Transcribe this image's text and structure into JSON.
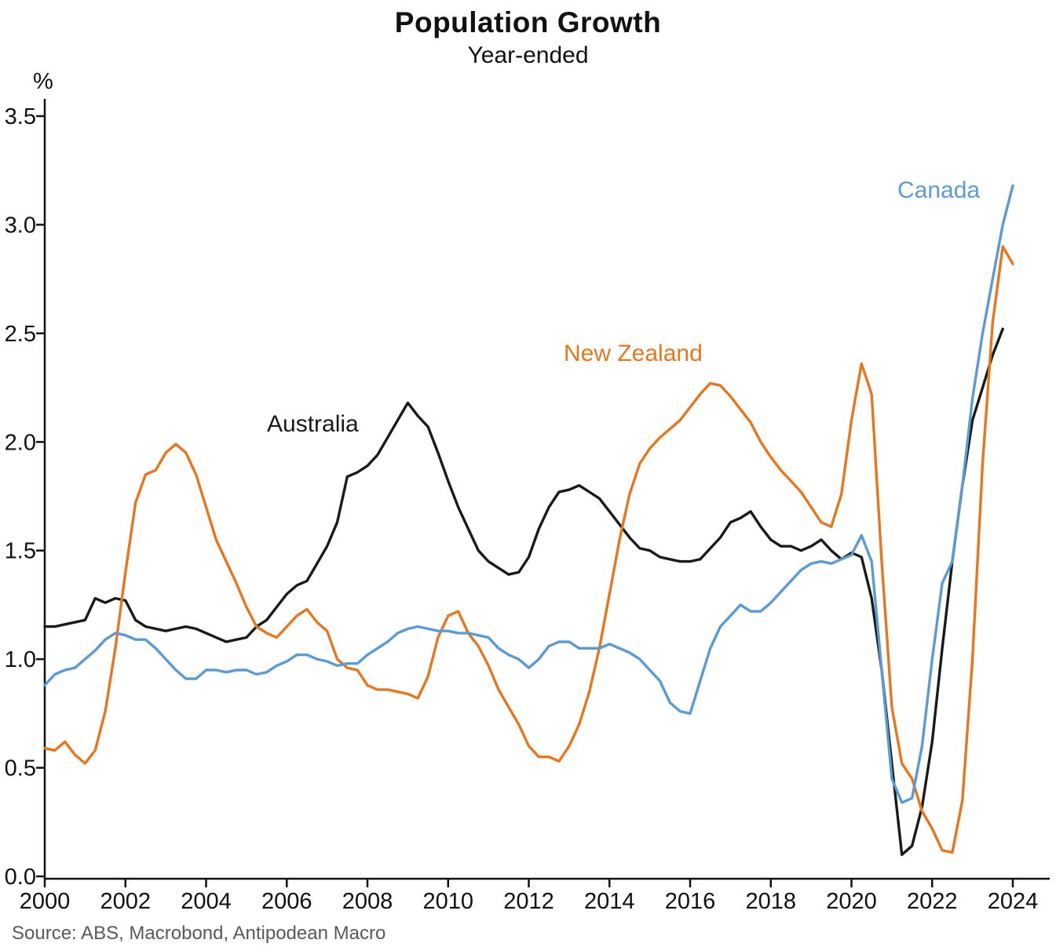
{
  "header": {
    "title": "Population Growth",
    "subtitle": "Year-ended"
  },
  "source_note": "Source: ABS, Macrobond, Antipodean Macro",
  "chart_data": {
    "type": "line",
    "title": "Population Growth",
    "subtitle": "Year-ended",
    "ylabel": "%",
    "xlabel": "",
    "xlim": [
      2000,
      2024
    ],
    "ylim": [
      0.0,
      3.5
    ],
    "grid": false,
    "legend_position": "inline-annotations",
    "axis_color": "#111111",
    "x_ticks": [
      "2000",
      "2002",
      "2004",
      "2006",
      "2008",
      "2010",
      "2012",
      "2014",
      "2016",
      "2018",
      "2020",
      "2022",
      "2024"
    ],
    "y_ticks": [
      "0.0",
      "0.5",
      "1.0",
      "1.5",
      "2.0",
      "2.5",
      "3.0",
      "3.5"
    ],
    "x": [
      2000,
      2000.25,
      2000.5,
      2000.75,
      2001,
      2001.25,
      2001.5,
      2001.75,
      2002,
      2002.25,
      2002.5,
      2002.75,
      2003,
      2003.25,
      2003.5,
      2003.75,
      2004,
      2004.25,
      2004.5,
      2004.75,
      2005,
      2005.25,
      2005.5,
      2005.75,
      2006,
      2006.25,
      2006.5,
      2006.75,
      2007,
      2007.25,
      2007.5,
      2007.75,
      2008,
      2008.25,
      2008.5,
      2008.75,
      2009,
      2009.25,
      2009.5,
      2009.75,
      2010,
      2010.25,
      2010.5,
      2010.75,
      2011,
      2011.25,
      2011.5,
      2011.75,
      2012,
      2012.25,
      2012.5,
      2012.75,
      2013,
      2013.25,
      2013.5,
      2013.75,
      2014,
      2014.25,
      2014.5,
      2014.75,
      2015,
      2015.25,
      2015.5,
      2015.75,
      2016,
      2016.25,
      2016.5,
      2016.75,
      2017,
      2017.25,
      2017.5,
      2017.75,
      2018,
      2018.25,
      2018.5,
      2018.75,
      2019,
      2019.25,
      2019.5,
      2019.75,
      2020,
      2020.25,
      2020.5,
      2020.75,
      2021,
      2021.25,
      2021.5,
      2021.75,
      2022,
      2022.25,
      2022.5,
      2022.75,
      2023,
      2023.25,
      2023.5,
      2023.75,
      2024
    ],
    "series": [
      {
        "id": "australia",
        "name": "Australia",
        "color": "#1a1a1a",
        "values": [
          1.15,
          1.15,
          1.16,
          1.17,
          1.18,
          1.28,
          1.26,
          1.28,
          1.27,
          1.18,
          1.15,
          1.14,
          1.13,
          1.14,
          1.15,
          1.14,
          1.12,
          1.1,
          1.08,
          1.09,
          1.1,
          1.15,
          1.18,
          1.24,
          1.3,
          1.34,
          1.36,
          1.44,
          1.52,
          1.63,
          1.84,
          1.86,
          1.89,
          1.94,
          2.02,
          2.1,
          2.18,
          2.12,
          2.07,
          1.95,
          1.82,
          1.7,
          1.6,
          1.5,
          1.45,
          1.42,
          1.39,
          1.4,
          1.47,
          1.6,
          1.7,
          1.77,
          1.78,
          1.8,
          1.77,
          1.74,
          1.68,
          1.62,
          1.56,
          1.51,
          1.5,
          1.47,
          1.46,
          1.45,
          1.45,
          1.46,
          1.51,
          1.56,
          1.63,
          1.65,
          1.68,
          1.61,
          1.55,
          1.52,
          1.52,
          1.5,
          1.52,
          1.55,
          1.5,
          1.46,
          1.49,
          1.47,
          1.28,
          0.95,
          0.52,
          0.1,
          0.14,
          0.32,
          0.62,
          1.05,
          1.45,
          1.8,
          2.1,
          2.25,
          2.4,
          2.52,
          null
        ]
      },
      {
        "id": "new-zealand",
        "name": "New Zealand",
        "color": "#e8761d",
        "values": [
          0.59,
          0.58,
          0.62,
          0.56,
          0.52,
          0.58,
          0.76,
          1.05,
          1.4,
          1.72,
          1.85,
          1.87,
          1.95,
          1.99,
          1.95,
          1.85,
          1.7,
          1.55,
          1.45,
          1.35,
          1.24,
          1.15,
          1.12,
          1.1,
          1.15,
          1.2,
          1.23,
          1.17,
          1.13,
          1.0,
          0.96,
          0.95,
          0.88,
          0.86,
          0.86,
          0.85,
          0.84,
          0.82,
          0.92,
          1.1,
          1.2,
          1.22,
          1.12,
          1.06,
          0.97,
          0.86,
          0.78,
          0.7,
          0.6,
          0.55,
          0.55,
          0.53,
          0.6,
          0.7,
          0.85,
          1.05,
          1.3,
          1.55,
          1.76,
          1.9,
          1.97,
          2.02,
          2.06,
          2.1,
          2.16,
          2.22,
          2.27,
          2.26,
          2.21,
          2.15,
          2.09,
          2.0,
          1.93,
          1.87,
          1.82,
          1.77,
          1.7,
          1.63,
          1.61,
          1.76,
          2.1,
          2.36,
          2.22,
          1.45,
          0.78,
          0.52,
          0.45,
          0.3,
          0.22,
          0.12,
          0.11,
          0.35,
          1.0,
          1.9,
          2.55,
          2.9,
          2.82
        ]
      },
      {
        "id": "canada",
        "name": "Canada",
        "color": "#5b9bd5",
        "values": [
          0.88,
          0.93,
          0.95,
          0.96,
          1.0,
          1.04,
          1.09,
          1.12,
          1.11,
          1.09,
          1.09,
          1.05,
          1.0,
          0.95,
          0.91,
          0.91,
          0.95,
          0.95,
          0.94,
          0.95,
          0.95,
          0.93,
          0.94,
          0.97,
          0.99,
          1.02,
          1.02,
          1.0,
          0.99,
          0.97,
          0.98,
          0.98,
          1.02,
          1.05,
          1.08,
          1.12,
          1.14,
          1.15,
          1.14,
          1.13,
          1.13,
          1.12,
          1.12,
          1.11,
          1.1,
          1.05,
          1.02,
          1.0,
          0.96,
          1.0,
          1.06,
          1.08,
          1.08,
          1.05,
          1.05,
          1.05,
          1.07,
          1.05,
          1.03,
          1.0,
          0.95,
          0.9,
          0.8,
          0.76,
          0.75,
          0.9,
          1.05,
          1.15,
          1.2,
          1.25,
          1.22,
          1.22,
          1.26,
          1.31,
          1.36,
          1.41,
          1.44,
          1.45,
          1.44,
          1.46,
          1.48,
          1.57,
          1.45,
          0.95,
          0.45,
          0.34,
          0.36,
          0.6,
          1.0,
          1.35,
          1.45,
          1.8,
          2.2,
          2.5,
          2.75,
          3.0,
          3.18
        ]
      }
    ]
  }
}
